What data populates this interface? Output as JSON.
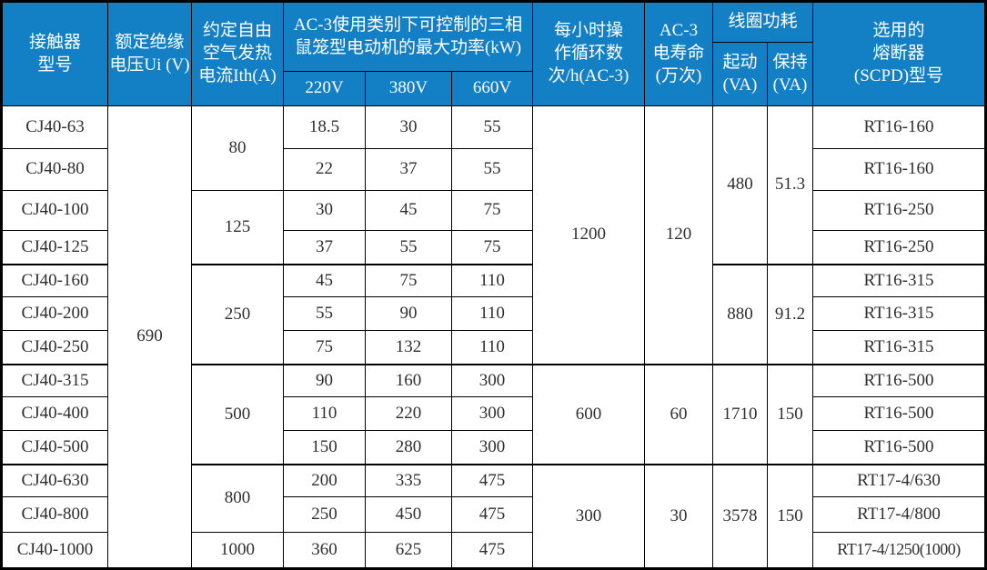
{
  "colors": {
    "header_bg": "#137fc4",
    "header_text": "#ffffff",
    "grid_line": "#000000",
    "body_text": "#2f2f2f"
  },
  "chart_data": {
    "type": "table",
    "header": {
      "contactor_model": "接触器\n型号",
      "rated_insulation_voltage": "额定绝缘\n电压Ui (V)",
      "free_air_thermal_current": "约定自由\n空气发热\n电流Ith(A)",
      "ac3_max_power": "AC-3使用类别下可控制的三相\n鼠笼型电动机的最大功率(kW)",
      "v220": "220V",
      "v380": "380V",
      "v660": "660V",
      "ops_per_hour": "每小时操\n作循环数\n次/h(AC-3)",
      "ac3_electrical_life": "AC-3\n电寿命\n(万次)",
      "coil_power": "线圈功耗",
      "coil_start": "起动\n(VA)",
      "coil_hold": "保持\n(VA)",
      "fuse": "选用的\n熔断器\n(SCPD)型号"
    },
    "shared": {
      "ui_voltage": "690"
    },
    "ith_groups": [
      {
        "value": "80",
        "rows": "CJ40-63 ~ CJ40-80"
      },
      {
        "value": "125",
        "rows": "CJ40-100 ~ CJ40-125"
      },
      {
        "value": "250",
        "rows": "CJ40-160 ~ CJ40-250"
      },
      {
        "value": "500",
        "rows": "CJ40-315 ~ CJ40-500"
      },
      {
        "value": "800",
        "rows": "CJ40-630 ~ CJ40-800"
      },
      {
        "value": "1000",
        "rows": "CJ40-1000"
      }
    ],
    "ops_life_groups": [
      {
        "ops": "1200",
        "life": "120"
      },
      {
        "ops": "600",
        "life": "60"
      },
      {
        "ops": "300",
        "life": "30"
      }
    ],
    "coil_groups": [
      {
        "start": "480",
        "hold": "51.3"
      },
      {
        "start": "880",
        "hold": "91.2"
      },
      {
        "start": "1710",
        "hold": "150"
      },
      {
        "start": "3578",
        "hold": "150"
      }
    ],
    "rows": [
      {
        "model": "CJ40-63",
        "p220": "18.5",
        "p380": "30",
        "p660": "55",
        "fuse": "RT16-160"
      },
      {
        "model": "CJ40-80",
        "p220": "22",
        "p380": "37",
        "p660": "55",
        "fuse": "RT16-160"
      },
      {
        "model": "CJ40-100",
        "p220": "30",
        "p380": "45",
        "p660": "75",
        "fuse": "RT16-250"
      },
      {
        "model": "CJ40-125",
        "p220": "37",
        "p380": "55",
        "p660": "75",
        "fuse": "RT16-250"
      },
      {
        "model": "CJ40-160",
        "p220": "45",
        "p380": "75",
        "p660": "110",
        "fuse": "RT16-315"
      },
      {
        "model": "CJ40-200",
        "p220": "55",
        "p380": "90",
        "p660": "110",
        "fuse": "RT16-315"
      },
      {
        "model": "CJ40-250",
        "p220": "75",
        "p380": "132",
        "p660": "110",
        "fuse": "RT16-315"
      },
      {
        "model": "CJ40-315",
        "p220": "90",
        "p380": "160",
        "p660": "300",
        "fuse": "RT16-500"
      },
      {
        "model": "CJ40-400",
        "p220": "110",
        "p380": "220",
        "p660": "300",
        "fuse": "RT16-500"
      },
      {
        "model": "CJ40-500",
        "p220": "150",
        "p380": "280",
        "p660": "300",
        "fuse": "RT16-500"
      },
      {
        "model": "CJ40-630",
        "p220": "200",
        "p380": "335",
        "p660": "475",
        "fuse": "RT17-4/630"
      },
      {
        "model": "CJ40-800",
        "p220": "250",
        "p380": "450",
        "p660": "475",
        "fuse": "RT17-4/800"
      },
      {
        "model": "CJ40-1000",
        "p220": "360",
        "p380": "625",
        "p660": "475",
        "fuse": "RT17-4/1250(1000)"
      }
    ]
  }
}
